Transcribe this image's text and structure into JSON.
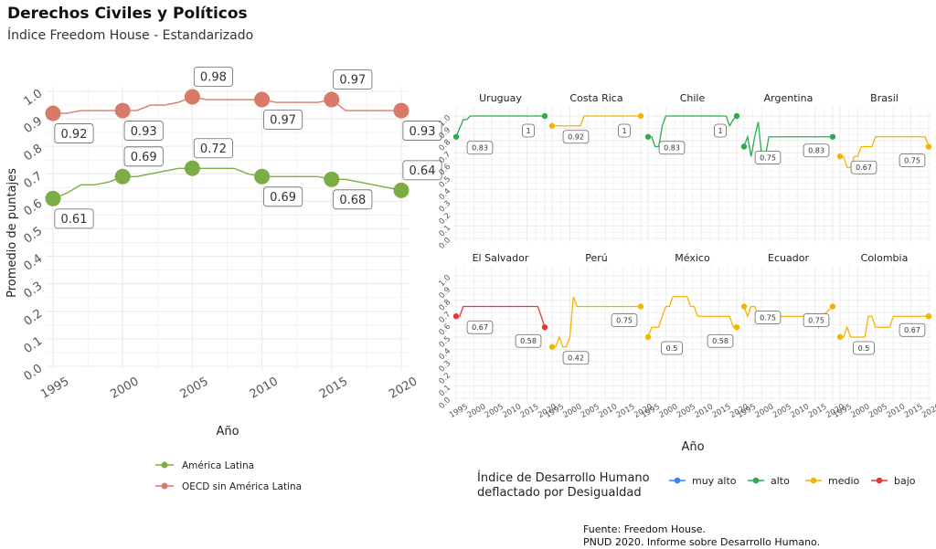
{
  "header": {
    "title": "Derechos Civiles y Políticos",
    "subtitle": "Índice Freedom House - Estandarizado"
  },
  "caption": {
    "line1": "Fuente: Freedom House.",
    "line2": "PNUD 2020. Informe sobre Desarrollo Humano."
  },
  "colors": {
    "america_latina": "#7cad44",
    "oecd": "#d9796a",
    "muy_alto": "#3b82f6",
    "alto": "#2eaa4f",
    "medio": "#f4b400",
    "bajo": "#e53935",
    "grid": "#ebebeb",
    "label_border": "#666666"
  },
  "chart_data": [
    {
      "type": "line",
      "xlabel": "Año",
      "ylabel": "Promedio de puntajes",
      "xlim": [
        1995,
        2020
      ],
      "ylim": [
        0,
        1
      ],
      "x_ticks": [
        "1995",
        "2000",
        "2005",
        "2010",
        "2015",
        "2020"
      ],
      "y_ticks": [
        "0.0",
        "0.1",
        "0.2",
        "0.3",
        "0.4",
        "0.5",
        "0.6",
        "0.7",
        "0.8",
        "0.9",
        "1.0"
      ],
      "legend_position": "bottom",
      "series": [
        {
          "name": "América Latina",
          "color_key": "america_latina",
          "x": [
            1995,
            1996,
            1997,
            1998,
            1999,
            2000,
            2001,
            2002,
            2003,
            2004,
            2005,
            2006,
            2007,
            2008,
            2009,
            2010,
            2011,
            2012,
            2013,
            2014,
            2015,
            2016,
            2017,
            2018,
            2019,
            2020
          ],
          "y": [
            0.61,
            0.63,
            0.66,
            0.66,
            0.67,
            0.69,
            0.69,
            0.7,
            0.71,
            0.72,
            0.72,
            0.72,
            0.72,
            0.72,
            0.7,
            0.69,
            0.69,
            0.69,
            0.69,
            0.69,
            0.68,
            0.68,
            0.67,
            0.66,
            0.65,
            0.64
          ],
          "highlights": [
            {
              "x": 1995,
              "label": "0.61",
              "pos": "below"
            },
            {
              "x": 2000,
              "label": "0.69",
              "pos": "above"
            },
            {
              "x": 2005,
              "label": "0.72",
              "pos": "above"
            },
            {
              "x": 2010,
              "label": "0.69",
              "pos": "below"
            },
            {
              "x": 2015,
              "label": "0.68",
              "pos": "below"
            },
            {
              "x": 2020,
              "label": "0.64",
              "pos": "above"
            }
          ]
        },
        {
          "name": "OECD sin América Latina",
          "color_key": "oecd",
          "x": [
            1995,
            1996,
            1997,
            1998,
            1999,
            2000,
            2001,
            2002,
            2003,
            2004,
            2005,
            2006,
            2007,
            2008,
            2009,
            2010,
            2011,
            2012,
            2013,
            2014,
            2015,
            2016,
            2017,
            2018,
            2019,
            2020
          ],
          "y": [
            0.92,
            0.92,
            0.93,
            0.93,
            0.93,
            0.93,
            0.93,
            0.95,
            0.95,
            0.96,
            0.98,
            0.97,
            0.97,
            0.97,
            0.97,
            0.97,
            0.96,
            0.96,
            0.96,
            0.96,
            0.97,
            0.93,
            0.93,
            0.93,
            0.93,
            0.93
          ],
          "highlights": [
            {
              "x": 1995,
              "label": "0.92",
              "pos": "below"
            },
            {
              "x": 2000,
              "label": "0.93",
              "pos": "below"
            },
            {
              "x": 2005,
              "label": "0.98",
              "pos": "above"
            },
            {
              "x": 2010,
              "label": "0.97",
              "pos": "below"
            },
            {
              "x": 2015,
              "label": "0.97",
              "pos": "above"
            },
            {
              "x": 2020,
              "label": "0.93",
              "pos": "below"
            }
          ]
        }
      ]
    },
    {
      "type": "line",
      "facet": true,
      "xlabel": "Año",
      "xlim": [
        1995,
        2020
      ],
      "ylim": [
        0,
        1
      ],
      "x_ticks": [
        "1995",
        "2000",
        "2005",
        "2010",
        "2015",
        "2020"
      ],
      "y_ticks": [
        "0.0",
        "0.1",
        "0.2",
        "0.3",
        "0.4",
        "0.5",
        "0.6",
        "0.7",
        "0.8",
        "0.9",
        "1.0"
      ],
      "legend": {
        "title_line1": "Índice de Desarrollo Humano",
        "title_line2": "deflactado por Desigualdad",
        "position": "bottom",
        "entries": [
          {
            "label": "muy alto",
            "color_key": "muy_alto"
          },
          {
            "label": "alto",
            "color_key": "alto"
          },
          {
            "label": "medio",
            "color_key": "medio"
          },
          {
            "label": "bajo",
            "color_key": "bajo"
          }
        ]
      },
      "panels": [
        {
          "country": "Uruguay",
          "color_key": "alto",
          "x": [
            1995,
            1996,
            1997,
            1998,
            1999,
            2020
          ],
          "y": [
            0.83,
            0.9,
            0.97,
            0.97,
            1.0,
            1.0
          ],
          "labels": [
            {
              "x": 1995,
              "text": "0.83"
            },
            {
              "x": 2020,
              "text": "1"
            }
          ]
        },
        {
          "country": "Costa Rica",
          "color_key": "medio",
          "x": [
            1995,
            2003,
            2004,
            2020
          ],
          "y": [
            0.92,
            0.92,
            1.0,
            1.0
          ],
          "labels": [
            {
              "x": 1995,
              "text": "0.92"
            },
            {
              "x": 2020,
              "text": "1"
            }
          ]
        },
        {
          "country": "Chile",
          "color_key": "alto",
          "x": [
            1995,
            1996,
            1997,
            1998,
            1999,
            2000,
            2017,
            2018,
            2019,
            2020
          ],
          "y": [
            0.83,
            0.83,
            0.75,
            0.75,
            0.92,
            1.0,
            1.0,
            0.92,
            0.97,
            1.0
          ],
          "labels": [
            {
              "x": 1995,
              "text": "0.83"
            },
            {
              "x": 2020,
              "text": "1"
            }
          ]
        },
        {
          "country": "Argentina",
          "color_key": "alto",
          "x": [
            1995,
            1996,
            1997,
            1998,
            1999,
            2000,
            2001,
            2002,
            2003,
            2020
          ],
          "y": [
            0.75,
            0.83,
            0.67,
            0.83,
            0.95,
            0.67,
            0.67,
            0.83,
            0.83,
            0.83
          ],
          "labels": [
            {
              "x": 1995,
              "text": "0.75"
            },
            {
              "x": 2020,
              "text": "0.83"
            }
          ]
        },
        {
          "country": "Brasil",
          "color_key": "medio",
          "x": [
            1995,
            1996,
            1997,
            1998,
            1999,
            2000,
            2001,
            2004,
            2005,
            2019,
            2020
          ],
          "y": [
            0.67,
            0.67,
            0.58,
            0.58,
            0.67,
            0.67,
            0.75,
            0.75,
            0.83,
            0.83,
            0.75
          ],
          "labels": [
            {
              "x": 1995,
              "text": "0.67"
            },
            {
              "x": 2020,
              "text": "0.75"
            }
          ]
        },
        {
          "country": "El Salvador",
          "color_key": "bajo",
          "x": [
            1995,
            1996,
            1997,
            2018,
            2019,
            2020
          ],
          "y": [
            0.67,
            0.67,
            0.75,
            0.75,
            0.67,
            0.58
          ],
          "labels": [
            {
              "x": 1995,
              "text": "0.67"
            },
            {
              "x": 2020,
              "text": "0.58"
            }
          ]
        },
        {
          "country": "Perú",
          "color_key": "medio",
          "x": [
            1995,
            1996,
            1997,
            1998,
            1999,
            2000,
            2001,
            2002,
            2019,
            2020
          ],
          "y": [
            0.42,
            0.42,
            0.5,
            0.42,
            0.42,
            0.5,
            0.83,
            0.75,
            0.75,
            0.75
          ],
          "labels": [
            {
              "x": 1995,
              "text": "0.42"
            },
            {
              "x": 2020,
              "text": "0.75"
            }
          ]
        },
        {
          "country": "México",
          "color_key": "medio",
          "x": [
            1995,
            1996,
            1997,
            1998,
            1999,
            2000,
            2001,
            2002,
            2006,
            2007,
            2008,
            2009,
            2018,
            2019,
            2020
          ],
          "y": [
            0.5,
            0.58,
            0.58,
            0.58,
            0.67,
            0.75,
            0.75,
            0.83,
            0.83,
            0.75,
            0.75,
            0.67,
            0.67,
            0.58,
            0.58
          ],
          "labels": [
            {
              "x": 1995,
              "text": "0.5"
            },
            {
              "x": 2020,
              "text": "0.58"
            }
          ]
        },
        {
          "country": "Ecuador",
          "color_key": "medio",
          "x": [
            1995,
            1996,
            1997,
            1998,
            1999,
            2015,
            2016,
            2017,
            2020
          ],
          "y": [
            0.75,
            0.67,
            0.75,
            0.75,
            0.67,
            0.67,
            0.58,
            0.67,
            0.75
          ],
          "labels": [
            {
              "x": 1995,
              "text": "0.75"
            },
            {
              "x": 2020,
              "text": "0.75"
            }
          ]
        },
        {
          "country": "Colombia",
          "color_key": "medio",
          "x": [
            1995,
            1996,
            1997,
            1998,
            1999,
            2002,
            2003,
            2004,
            2005,
            2009,
            2010,
            2020
          ],
          "y": [
            0.5,
            0.5,
            0.58,
            0.5,
            0.5,
            0.5,
            0.67,
            0.67,
            0.58,
            0.58,
            0.67,
            0.67
          ],
          "labels": [
            {
              "x": 1995,
              "text": "0.5"
            },
            {
              "x": 2020,
              "text": "0.67"
            }
          ]
        }
      ]
    }
  ]
}
